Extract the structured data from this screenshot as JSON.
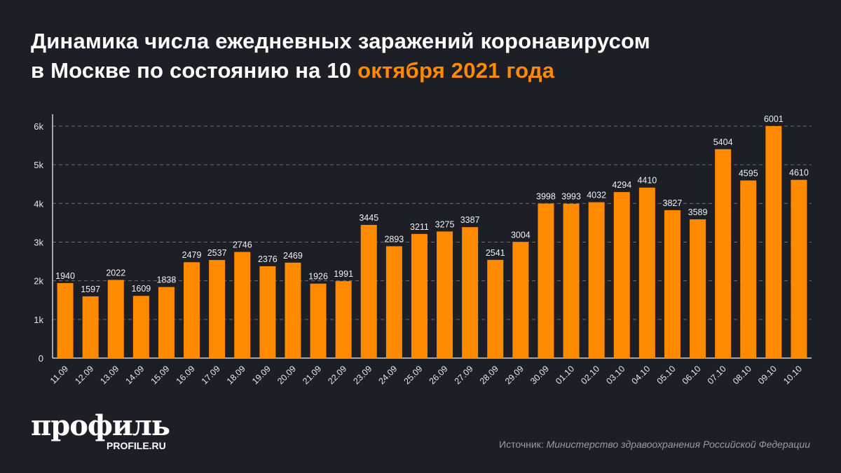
{
  "title": {
    "line1": "Динамика числа ежедневных заражений коронавирусом",
    "line2_prefix": "в Москве по состоянию на 10",
    "line2_highlight": "октября 2021 года"
  },
  "colors": {
    "bar": "#ff8a00",
    "background": "#1e1e27",
    "highlight": "#ff8a00",
    "text": "#ffffff"
  },
  "chart_data": {
    "type": "bar",
    "title": "Динамика числа ежедневных заражений коронавирусом в Москве по состоянию на 10 октября 2021 года",
    "categories": [
      "11.09",
      "12.09",
      "13.09",
      "14.09",
      "15.09",
      "16.09",
      "17.09",
      "18.09",
      "19.09",
      "20.09",
      "21.09",
      "22.09",
      "23.09",
      "24.09",
      "25.09",
      "26.09",
      "27.09",
      "28.09",
      "29.09",
      "30.09",
      "01.10",
      "02.10",
      "03.10",
      "04.10",
      "05.10",
      "06.10",
      "07.10",
      "08.10",
      "09.10",
      "10.10"
    ],
    "values": [
      1940,
      1597,
      2022,
      1609,
      1838,
      2479,
      2537,
      2746,
      2376,
      2469,
      1926,
      1991,
      3445,
      2893,
      3211,
      3275,
      3387,
      2541,
      3004,
      3998,
      3993,
      4032,
      4294,
      4410,
      3827,
      3589,
      5404,
      4595,
      6001,
      4610
    ],
    "ylim": [
      0,
      6000
    ],
    "yticks": [
      0,
      1000,
      2000,
      3000,
      4000,
      5000,
      6000
    ],
    "ytick_labels": [
      "0",
      "1k",
      "2k",
      "3k",
      "4k",
      "5k",
      "6k"
    ],
    "grid": "horizontal dashed",
    "data_labels": true,
    "xlabel": "",
    "ylabel": ""
  },
  "logo": {
    "name": "профиль",
    "url_text": "PROFILE.RU"
  },
  "source": {
    "prefix": "Источник:",
    "text": "Министерство здравоохранения Российской Федерации"
  }
}
